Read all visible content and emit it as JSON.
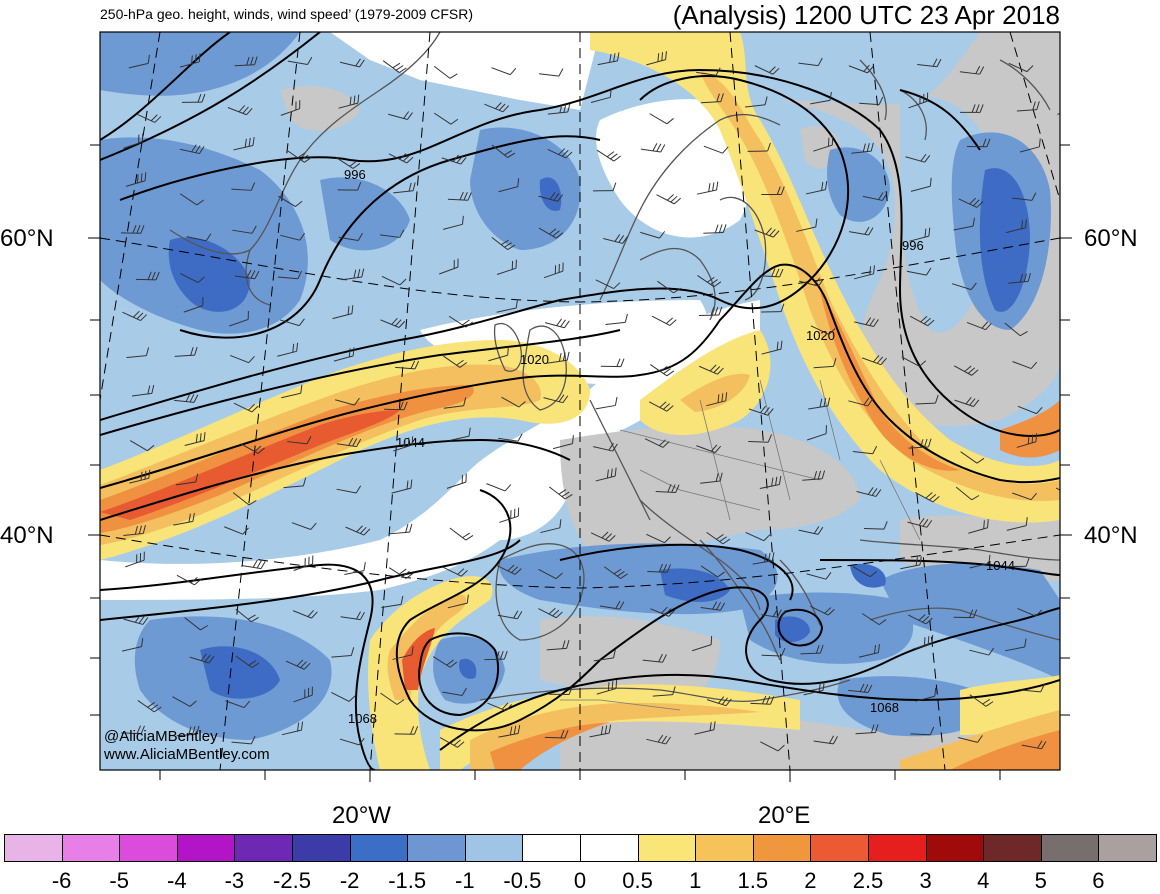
{
  "title": {
    "left": "250-hPa geo. height, winds, wind speed’ (1979-2009 CFSR)",
    "right": "(Analysis) 1200 UTC 23 Apr 2018"
  },
  "axes": {
    "lat_labels": [
      "60°N",
      "40°N"
    ],
    "lon_labels": [
      "20°W",
      "20°E"
    ]
  },
  "contour_labels": [
    "996",
    "996",
    "1020",
    "1020",
    "1044",
    "1044",
    "1068",
    "1068"
  ],
  "credits": [
    "@AliciaMBentley",
    "www.AliciaMBentley.com"
  ],
  "colorbar": {
    "colors": [
      "#e8b4e8",
      "#e87ee8",
      "#dc4cdc",
      "#b414c8",
      "#6e28b4",
      "#3c3ca8",
      "#3c6ec8",
      "#6e96d2",
      "#a0c4e6",
      "#ffffff",
      "#ffffff",
      "#fae678",
      "#f5c35a",
      "#f0963c",
      "#eb5a32",
      "#e61e1e",
      "#a00a0a",
      "#6e2828",
      "#786e6e",
      "#aaa0a0"
    ],
    "labels": [
      "-6",
      "-5",
      "-4",
      "-3",
      "-2.5",
      "-2",
      "-1.5",
      "-1",
      "-0.5",
      "0",
      "0.5",
      "1",
      "1.5",
      "2",
      "2.5",
      "3",
      "4",
      "5",
      "6"
    ]
  },
  "map_colors": {
    "ocean_base": "#a8cbe8",
    "blue_mid": "#6e9ad4",
    "blue_dark": "#3e6cc4",
    "yellow": "#f9e47a",
    "orange_light": "#f4bf5e",
    "orange": "#ef9140",
    "red": "#e85a30",
    "gray": "#c8c8c8",
    "coast": "#555555"
  }
}
